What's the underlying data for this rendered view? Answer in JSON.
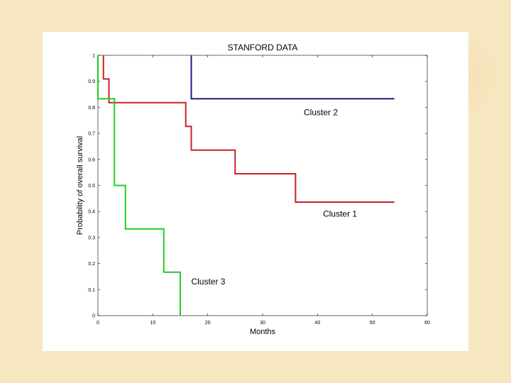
{
  "chart_data": {
    "type": "line",
    "title": "STANFORD DATA",
    "xlabel": "Months",
    "ylabel": "Probability of overall survival",
    "xlim": [
      0,
      60
    ],
    "ylim": [
      0,
      1
    ],
    "xticks": [
      0,
      10,
      20,
      30,
      40,
      50,
      60
    ],
    "yticks": [
      0,
      0.1,
      0.2,
      0.3,
      0.4,
      0.5,
      0.6,
      0.7,
      0.8,
      0.9,
      1
    ],
    "ytick_labels": [
      "0",
      "0.1",
      "0.2",
      "0.3",
      "0.4",
      "0.5",
      "0.6",
      "0.7",
      "0.8",
      "0.9",
      "1"
    ],
    "grid": false,
    "step": true,
    "series": [
      {
        "name": "Cluster 2",
        "color": "#1a1a8c",
        "x": [
          17,
          17,
          54
        ],
        "y": [
          1,
          0.833,
          0.833
        ]
      },
      {
        "name": "Cluster 1",
        "color": "#cc2020",
        "x": [
          1,
          1,
          2,
          2,
          16,
          16,
          17,
          17,
          25,
          25,
          36,
          36,
          54
        ],
        "y": [
          1,
          0.909,
          0.909,
          0.818,
          0.818,
          0.727,
          0.727,
          0.636,
          0.636,
          0.545,
          0.545,
          0.436,
          0.436
        ]
      },
      {
        "name": "Cluster 3",
        "color": "#22cc22",
        "x": [
          0,
          0,
          3,
          3,
          5,
          5,
          12,
          12,
          15,
          15
        ],
        "y": [
          1,
          0.833,
          0.833,
          0.5,
          0.5,
          0.333,
          0.333,
          0.167,
          0.167,
          0
        ]
      }
    ],
    "annotations": [
      {
        "text": "Cluster 2",
        "x": 37.5,
        "y": 0.77
      },
      {
        "text": "Cluster 1",
        "x": 41,
        "y": 0.38
      },
      {
        "text": "Cluster 3",
        "x": 17,
        "y": 0.12
      }
    ]
  }
}
